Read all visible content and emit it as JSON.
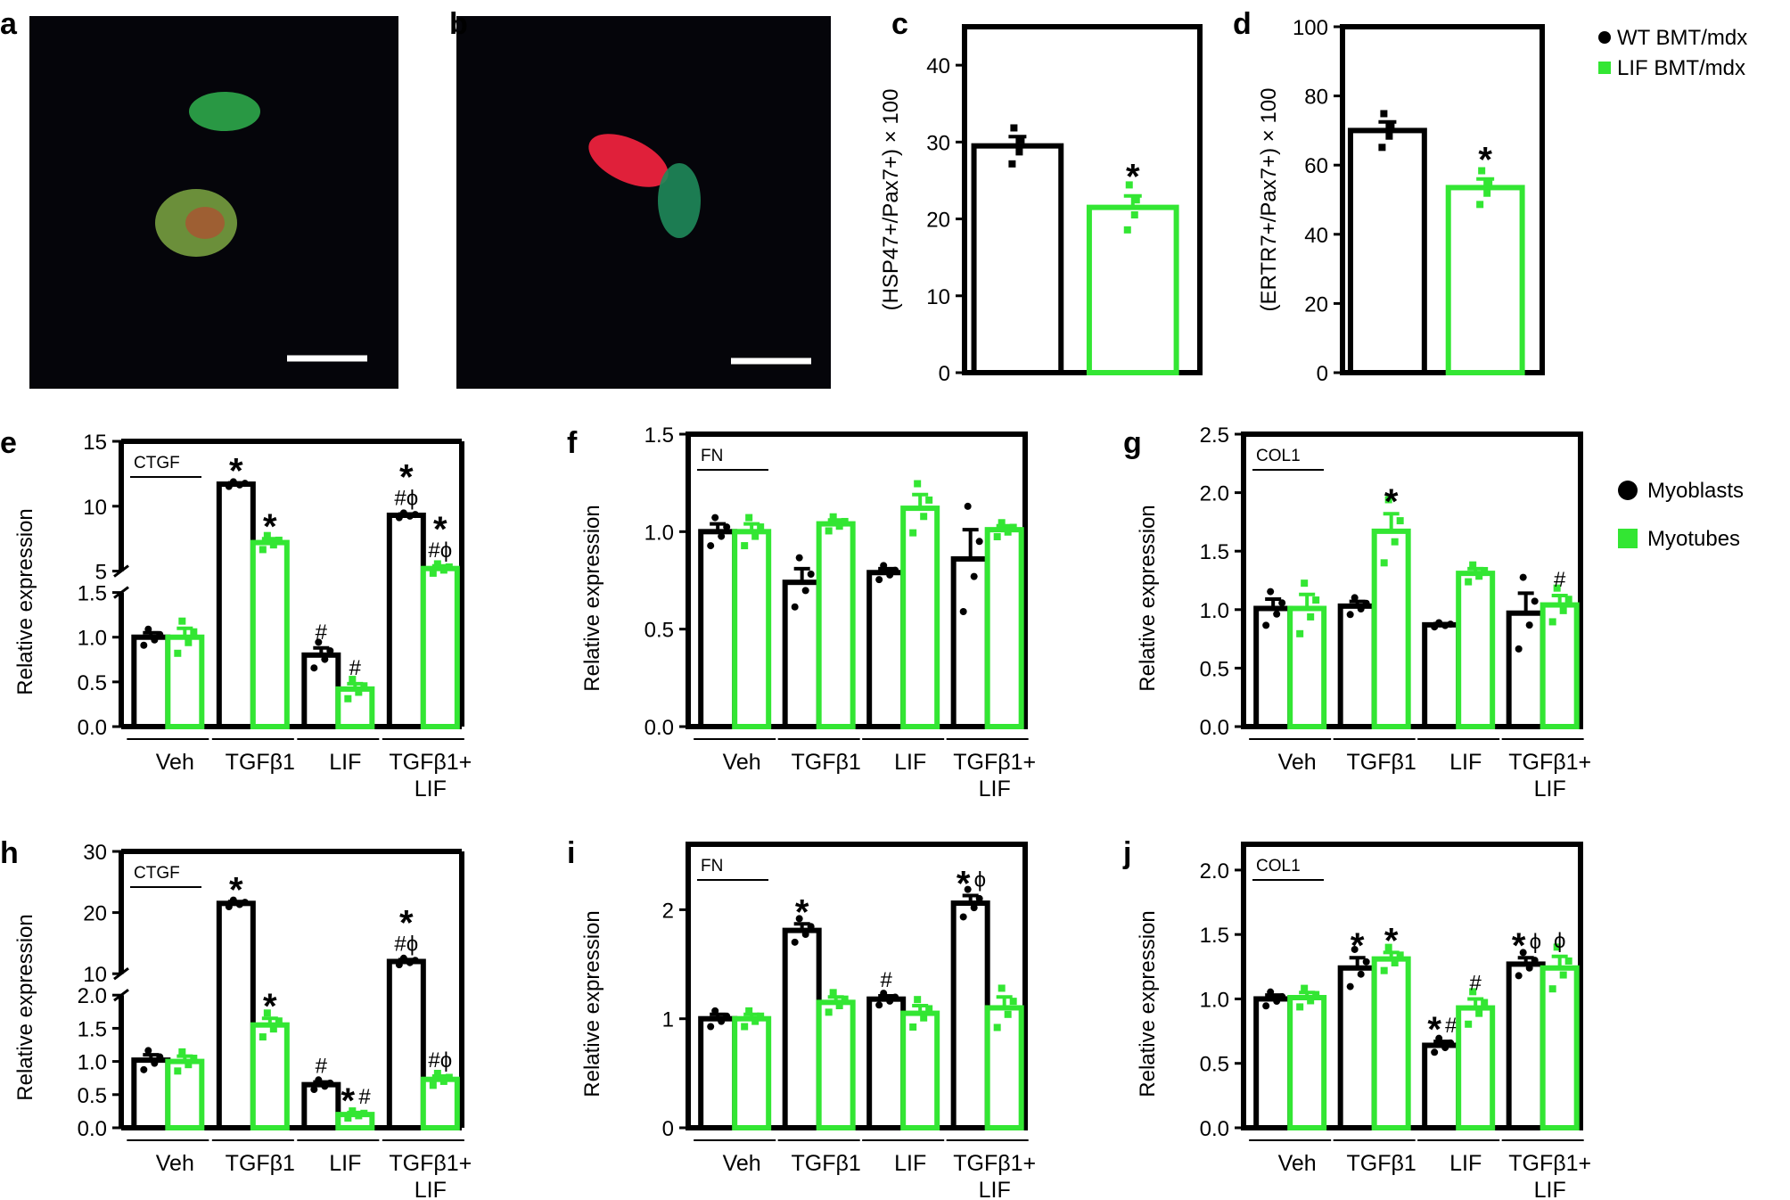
{
  "colors": {
    "wt": "#000000",
    "lif": "#33e633",
    "micro_bg": "#05050a"
  },
  "micrographs": [
    {
      "panel": "a",
      "content": "green-cells"
    },
    {
      "panel": "b",
      "content": "red-green-cells"
    }
  ],
  "legends": [
    {
      "for": "c-d",
      "entries": [
        {
          "label": "WT BMT/mdx",
          "marker": "circle",
          "color": "#000000"
        },
        {
          "label": "LIF BMT/mdx",
          "marker": "square",
          "color": "#33e633"
        }
      ]
    },
    {
      "for": "e-j",
      "entries": [
        {
          "label": "Myoblasts",
          "marker": "circle",
          "color": "#000000"
        },
        {
          "label": "Myotubes",
          "marker": "square",
          "color": "#33e633"
        }
      ]
    }
  ],
  "chart_data": [
    {
      "panel": "c",
      "type": "bar",
      "ylabel": "(HSP47+/Pax7+) × 100",
      "ylim": [
        0,
        45
      ],
      "yticks": [
        "0",
        "10",
        "20",
        "30",
        "40"
      ],
      "categories": [
        "WT BMT/mdx",
        "LIF BMT/mdx"
      ],
      "values": [
        29.5,
        21.5
      ],
      "errors": [
        1.2,
        1.5
      ],
      "stars": [
        "",
        "*"
      ]
    },
    {
      "panel": "d",
      "type": "bar",
      "ylabel": "(ERTR7+/Pax7+) × 100",
      "ylim": [
        0,
        100
      ],
      "yticks": [
        "0",
        "20",
        "40",
        "60",
        "80",
        "100"
      ],
      "categories": [
        "WT BMT/mdx",
        "LIF BMT/mdx"
      ],
      "values": [
        70,
        53.5
      ],
      "errors": [
        2.5,
        2.5
      ],
      "stars": [
        "",
        "*"
      ]
    },
    {
      "panel": "e",
      "type": "bar",
      "gene": "CTGF",
      "ylabel": "Relative expression",
      "broken": true,
      "yticks_low": [
        "0.0",
        "0.5",
        "1.0",
        "1.5"
      ],
      "yticks_high": [
        "5",
        "10",
        "15"
      ],
      "categories": [
        "Veh",
        "TGFβ1",
        "LIF",
        "TGFβ1+\nLIF"
      ],
      "series": [
        {
          "name": "Myoblasts",
          "values": [
            1.0,
            11.7,
            0.8,
            9.3
          ],
          "errors": [
            0.05,
            0.1,
            0.08,
            0.1
          ]
        },
        {
          "name": "Myotubes",
          "values": [
            1.0,
            7.2,
            0.42,
            5.2
          ],
          "errors": [
            0.1,
            0.3,
            0.06,
            0.2
          ]
        }
      ],
      "annotations": [
        [
          "",
          "*",
          "#",
          "*\n#ϕ"
        ],
        [
          "",
          "*",
          "#",
          "*\n#ϕ"
        ]
      ]
    },
    {
      "panel": "f",
      "type": "bar",
      "gene": "FN",
      "ylabel": "Relative expression",
      "ylim": [
        0,
        1.5
      ],
      "yticks": [
        "0.0",
        "0.5",
        "1.0",
        "1.5"
      ],
      "categories": [
        "Veh",
        "TGFβ1",
        "LIF",
        "TGFβ1+\nLIF"
      ],
      "series": [
        {
          "name": "Myoblasts",
          "values": [
            1.0,
            0.74,
            0.79,
            0.86
          ],
          "errors": [
            0.04,
            0.07,
            0.02,
            0.15
          ]
        },
        {
          "name": "Myotubes",
          "values": [
            1.0,
            1.04,
            1.12,
            1.01
          ],
          "errors": [
            0.04,
            0.02,
            0.07,
            0.02
          ]
        }
      ],
      "annotations": [
        [
          "",
          "",
          "",
          ""
        ],
        [
          "",
          "",
          "",
          ""
        ]
      ]
    },
    {
      "panel": "g",
      "type": "bar",
      "gene": "COL1",
      "ylabel": "Relative expression",
      "ylim": [
        0,
        2.5
      ],
      "yticks": [
        "0.0",
        "0.5",
        "1.0",
        "1.5",
        "2.0",
        "2.5"
      ],
      "categories": [
        "Veh",
        "TGFβ1",
        "LIF",
        "TGFβ1+\nLIF"
      ],
      "series": [
        {
          "name": "Myoblasts",
          "values": [
            1.01,
            1.03,
            0.87,
            0.97
          ],
          "errors": [
            0.08,
            0.04,
            0.01,
            0.17
          ]
        },
        {
          "name": "Myotubes",
          "values": [
            1.01,
            1.67,
            1.31,
            1.04
          ],
          "errors": [
            0.12,
            0.15,
            0.04,
            0.08
          ]
        }
      ],
      "annotations": [
        [
          "",
          "",
          "",
          ""
        ],
        [
          "",
          "*",
          "",
          "#"
        ]
      ]
    },
    {
      "panel": "h",
      "type": "bar",
      "gene": "CTGF",
      "ylabel": "Relative expression",
      "broken": true,
      "yticks_low": [
        "0.0",
        "0.5",
        "1.0",
        "1.5",
        "2.0"
      ],
      "yticks_high": [
        "10",
        "20",
        "30"
      ],
      "categories": [
        "Veh",
        "TGFβ1",
        "LIF",
        "TGFβ1+\nLIF"
      ],
      "series": [
        {
          "name": "Myoblasts",
          "values": [
            1.02,
            21.5,
            0.65,
            12.0
          ],
          "errors": [
            0.08,
            0.3,
            0.04,
            0.3
          ]
        },
        {
          "name": "Myotubes",
          "values": [
            1.0,
            1.55,
            0.2,
            0.73
          ],
          "errors": [
            0.08,
            0.1,
            0.03,
            0.05
          ]
        }
      ],
      "annotations": [
        [
          "",
          "*",
          "#",
          "*\n#ϕ"
        ],
        [
          "",
          "*",
          "*#",
          "#ϕ"
        ]
      ]
    },
    {
      "panel": "i",
      "type": "bar",
      "gene": "FN",
      "ylabel": "Relative expression",
      "ylim": [
        0,
        2.6
      ],
      "yticks": [
        "0",
        "1",
        "2"
      ],
      "categories": [
        "Veh",
        "TGFβ1",
        "LIF",
        "TGFβ1+\nLIF"
      ],
      "series": [
        {
          "name": "Myoblasts",
          "values": [
            1.0,
            1.81,
            1.18,
            2.06
          ],
          "errors": [
            0.04,
            0.06,
            0.03,
            0.07
          ]
        },
        {
          "name": "Myotubes",
          "values": [
            1.0,
            1.15,
            1.05,
            1.1
          ],
          "errors": [
            0.04,
            0.05,
            0.07,
            0.1
          ]
        }
      ],
      "annotations": [
        [
          "",
          "*",
          "#",
          "*ϕ"
        ],
        [
          "",
          "",
          "",
          ""
        ]
      ]
    },
    {
      "panel": "j",
      "type": "bar",
      "gene": "COL1",
      "ylabel": "Relative expression",
      "ylim": [
        0,
        2.2
      ],
      "yticks": [
        "0.0",
        "0.5",
        "1.0",
        "1.5",
        "2.0"
      ],
      "categories": [
        "Veh",
        "TGFβ1",
        "LIF",
        "TGFβ1+\nLIF"
      ],
      "series": [
        {
          "name": "Myoblasts",
          "values": [
            1.0,
            1.24,
            0.64,
            1.27
          ],
          "errors": [
            0.03,
            0.08,
            0.03,
            0.05
          ]
        },
        {
          "name": "Myotubes",
          "values": [
            1.01,
            1.31,
            0.93,
            1.24
          ],
          "errors": [
            0.04,
            0.05,
            0.07,
            0.09
          ]
        }
      ],
      "annotations": [
        [
          "",
          "*",
          "*#",
          "*ϕ"
        ],
        [
          "",
          "*",
          "#",
          "ϕ"
        ]
      ]
    }
  ]
}
